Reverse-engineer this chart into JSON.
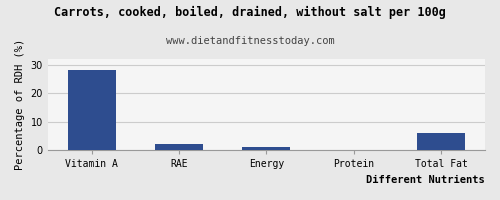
{
  "title": "Carrots, cooked, boiled, drained, without salt per 100g",
  "subtitle": "www.dietandfitnesstoday.com",
  "xlabel": "Different Nutrients",
  "ylabel": "Percentage of RDH (%)",
  "categories": [
    "Vitamin A",
    "RAE",
    "Energy",
    "Protein",
    "Total Fat"
  ],
  "values": [
    28.0,
    2.2,
    1.1,
    0.1,
    6.2
  ],
  "bar_color": "#2e4d8f",
  "ylim": [
    0,
    32
  ],
  "yticks": [
    0,
    10,
    20,
    30
  ],
  "background_color": "#e8e8e8",
  "plot_bg_color": "#f5f5f5",
  "title_fontsize": 8.5,
  "subtitle_fontsize": 7.5,
  "axis_label_fontsize": 7.5,
  "tick_fontsize": 7,
  "grid_color": "#cccccc",
  "bar_width": 0.55
}
